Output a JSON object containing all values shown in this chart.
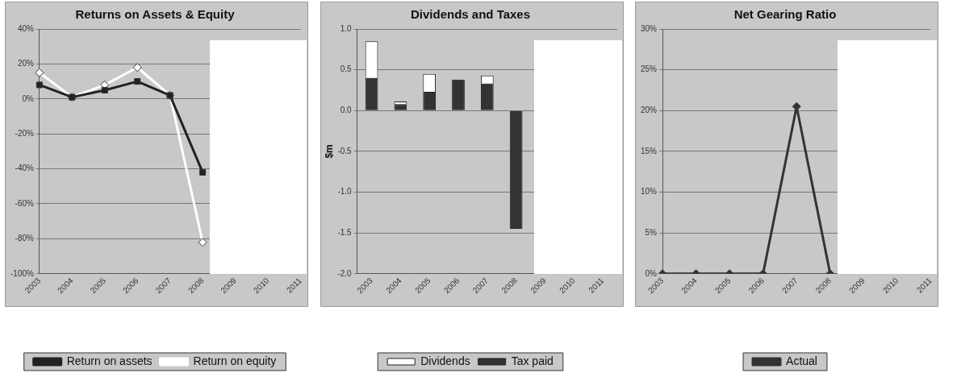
{
  "chart_data": [
    {
      "type": "line",
      "title": "Returns on Assets & Equity",
      "categories": [
        "2003",
        "2004",
        "2005",
        "2006",
        "2007",
        "2008",
        "2009",
        "2010",
        "2011"
      ],
      "series": [
        {
          "name": "Return on assets",
          "color": "#222222",
          "marker": "square",
          "values": [
            8,
            1,
            5,
            10,
            2,
            -42,
            null,
            null,
            null
          ]
        },
        {
          "name": "Return on equity",
          "color": "#ffffff",
          "marker": "diamond",
          "values": [
            15,
            1,
            8,
            18,
            2,
            -82,
            null,
            null,
            null
          ]
        }
      ],
      "ylim": [
        -100,
        40
      ],
      "yticks": [
        {
          "value": -100,
          "label": "-100%"
        },
        {
          "value": -80,
          "label": "-80%"
        },
        {
          "value": -60,
          "label": "-60%"
        },
        {
          "value": -40,
          "label": "-40%"
        },
        {
          "value": -20,
          "label": "-20%"
        },
        {
          "value": 0,
          "label": "0%"
        },
        {
          "value": 20,
          "label": "20%"
        },
        {
          "value": 40,
          "label": "40%"
        }
      ],
      "grid": "y",
      "legend": "bottom"
    },
    {
      "type": "bar",
      "title": "Dividends and Taxes",
      "ylabel": "$m",
      "categories": [
        "2003",
        "2004",
        "2005",
        "2006",
        "2007",
        "2008",
        "2009",
        "2010",
        "2011"
      ],
      "stacked": true,
      "series": [
        {
          "name": "Tax paid",
          "color": "#333333",
          "values": [
            0.4,
            0.08,
            0.23,
            0.38,
            0.33,
            -1.45,
            null,
            null,
            null
          ]
        },
        {
          "name": "Dividends",
          "color": "#ffffff",
          "values": [
            0.45,
            0.03,
            0.22,
            null,
            0.1,
            null,
            null,
            null,
            null
          ]
        }
      ],
      "ylim": [
        -2,
        1
      ],
      "yticks": [
        {
          "value": -2,
          "label": "-2.0"
        },
        {
          "value": -1.5,
          "label": "-1.5"
        },
        {
          "value": -1,
          "label": "-1.0"
        },
        {
          "value": -0.5,
          "label": "-0.5"
        },
        {
          "value": 0,
          "label": "0.0"
        },
        {
          "value": 0.5,
          "label": "0.5"
        },
        {
          "value": 1,
          "label": "1.0"
        }
      ],
      "grid": "y",
      "legend": "bottom"
    },
    {
      "type": "line",
      "title": "Net Gearing Ratio",
      "categories": [
        "2003",
        "2004",
        "2005",
        "2006",
        "2007",
        "2008",
        "2009",
        "2010",
        "2011"
      ],
      "series": [
        {
          "name": "Actual",
          "color": "#333333",
          "marker": "diamond",
          "values": [
            0,
            0,
            0,
            0,
            20.5,
            0,
            null,
            null,
            null
          ]
        }
      ],
      "ylim": [
        0,
        30
      ],
      "yticks": [
        {
          "value": 0,
          "label": "0%"
        },
        {
          "value": 5,
          "label": "5%"
        },
        {
          "value": 10,
          "label": "10%"
        },
        {
          "value": 15,
          "label": "15%"
        },
        {
          "value": 20,
          "label": "20%"
        },
        {
          "value": 25,
          "label": "25%"
        },
        {
          "value": 30,
          "label": "30%"
        }
      ],
      "grid": "y",
      "legend": "bottom"
    }
  ]
}
